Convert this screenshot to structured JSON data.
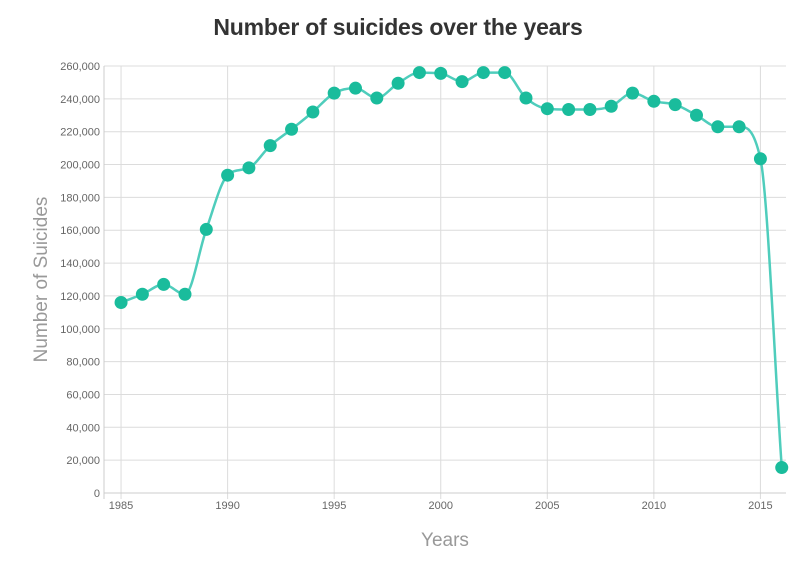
{
  "chart_data": {
    "type": "line",
    "title": "Number of suicides over the years",
    "xlabel": "Years",
    "ylabel": "Number of Suicides",
    "xlim": [
      1984.2,
      2016.2
    ],
    "ylim": [
      0,
      260000
    ],
    "x_ticks": [
      1985,
      1990,
      1995,
      2000,
      2005,
      2010,
      2015
    ],
    "y_ticks": [
      0,
      20000,
      40000,
      60000,
      80000,
      100000,
      120000,
      140000,
      160000,
      180000,
      200000,
      220000,
      240000,
      260000
    ],
    "y_tick_labels": [
      "0",
      "20,000",
      "40,000",
      "60,000",
      "80,000",
      "100,000",
      "120,000",
      "140,000",
      "160,000",
      "180,000",
      "200,000",
      "220,000",
      "240,000",
      "260,000"
    ],
    "grid": true,
    "line_color": "#4fcdbc",
    "marker_color": "#1abc9c",
    "series": [
      {
        "x": [
          1985,
          1986,
          1987,
          1988,
          1989,
          1990,
          1991,
          1992,
          1993,
          1994,
          1995,
          1996,
          1997,
          1998,
          1999,
          2000,
          2001,
          2002,
          2003,
          2004,
          2005,
          2006,
          2007,
          2008,
          2009,
          2010,
          2011,
          2012,
          2013,
          2014,
          2015,
          2016
        ],
        "values": [
          116000,
          121000,
          127000,
          121000,
          160500,
          193500,
          198000,
          211500,
          221500,
          232000,
          243500,
          246500,
          240500,
          249500,
          256000,
          255500,
          250500,
          256000,
          256000,
          240500,
          234000,
          233500,
          233500,
          235500,
          243500,
          238500,
          236500,
          230000,
          223000,
          223000,
          203500,
          15500
        ]
      }
    ]
  }
}
